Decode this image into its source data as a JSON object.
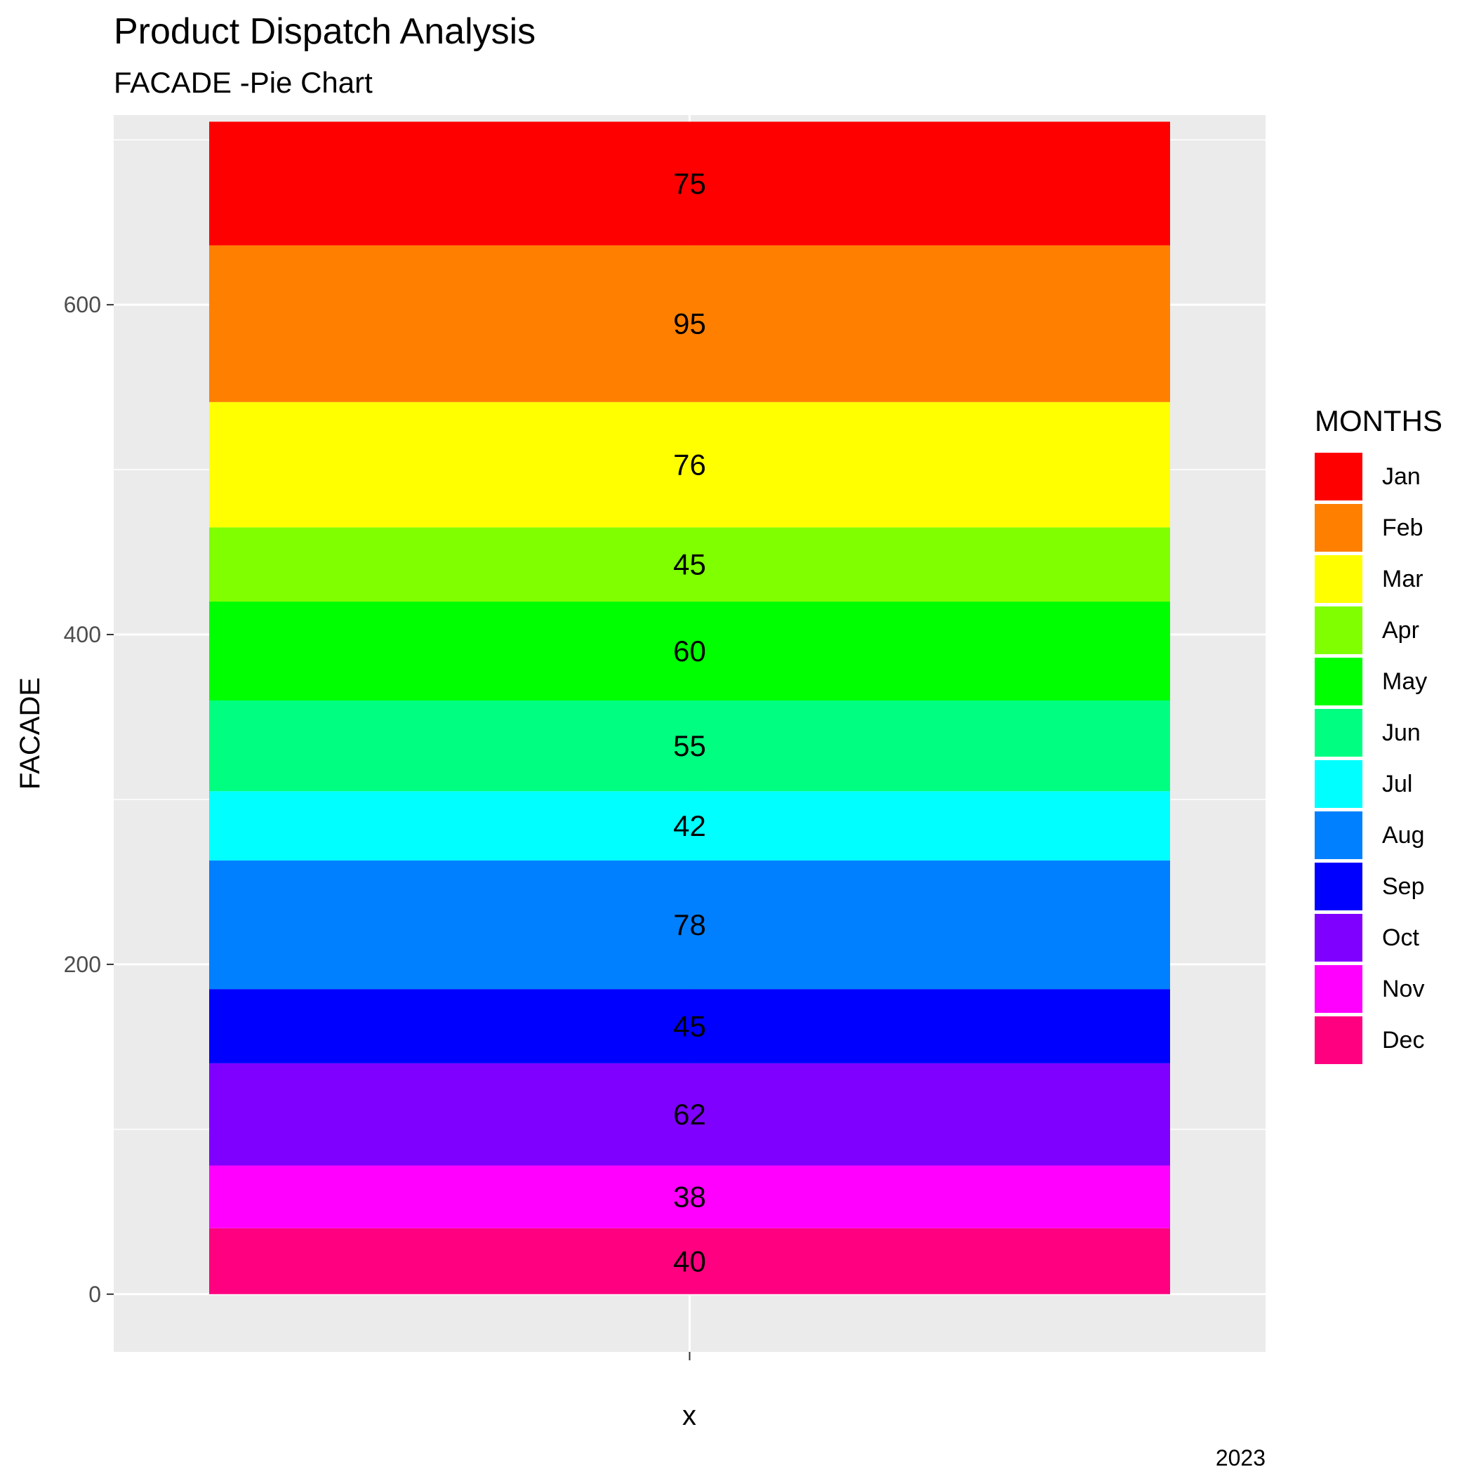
{
  "chart_data": {
    "type": "bar",
    "stacked": true,
    "title": "Product Dispatch Analysis",
    "subtitle": "FACADE -Pie Chart",
    "xlabel": "x",
    "ylabel": "FACADE",
    "caption": "2023",
    "ylim": [
      -35,
      715
    ],
    "y_ticks": [
      0,
      200,
      400,
      600
    ],
    "grid": true,
    "legend": {
      "title": "MONTHS",
      "placement": "right"
    },
    "series": [
      {
        "name": "Jan",
        "value": 75,
        "color": "#FF0000"
      },
      {
        "name": "Feb",
        "value": 95,
        "color": "#FF8000"
      },
      {
        "name": "Mar",
        "value": 76,
        "color": "#FFFF00"
      },
      {
        "name": "Apr",
        "value": 45,
        "color": "#80FF00"
      },
      {
        "name": "May",
        "value": 60,
        "color": "#00FF00"
      },
      {
        "name": "Jun",
        "value": 55,
        "color": "#00FF80"
      },
      {
        "name": "Jul",
        "value": 42,
        "color": "#00FFFF"
      },
      {
        "name": "Aug",
        "value": 78,
        "color": "#0080FF"
      },
      {
        "name": "Sep",
        "value": 45,
        "color": "#0000FF"
      },
      {
        "name": "Oct",
        "value": 62,
        "color": "#8000FF"
      },
      {
        "name": "Nov",
        "value": 38,
        "color": "#FF00FF"
      },
      {
        "name": "Dec",
        "value": 40,
        "color": "#FF0080"
      }
    ]
  }
}
